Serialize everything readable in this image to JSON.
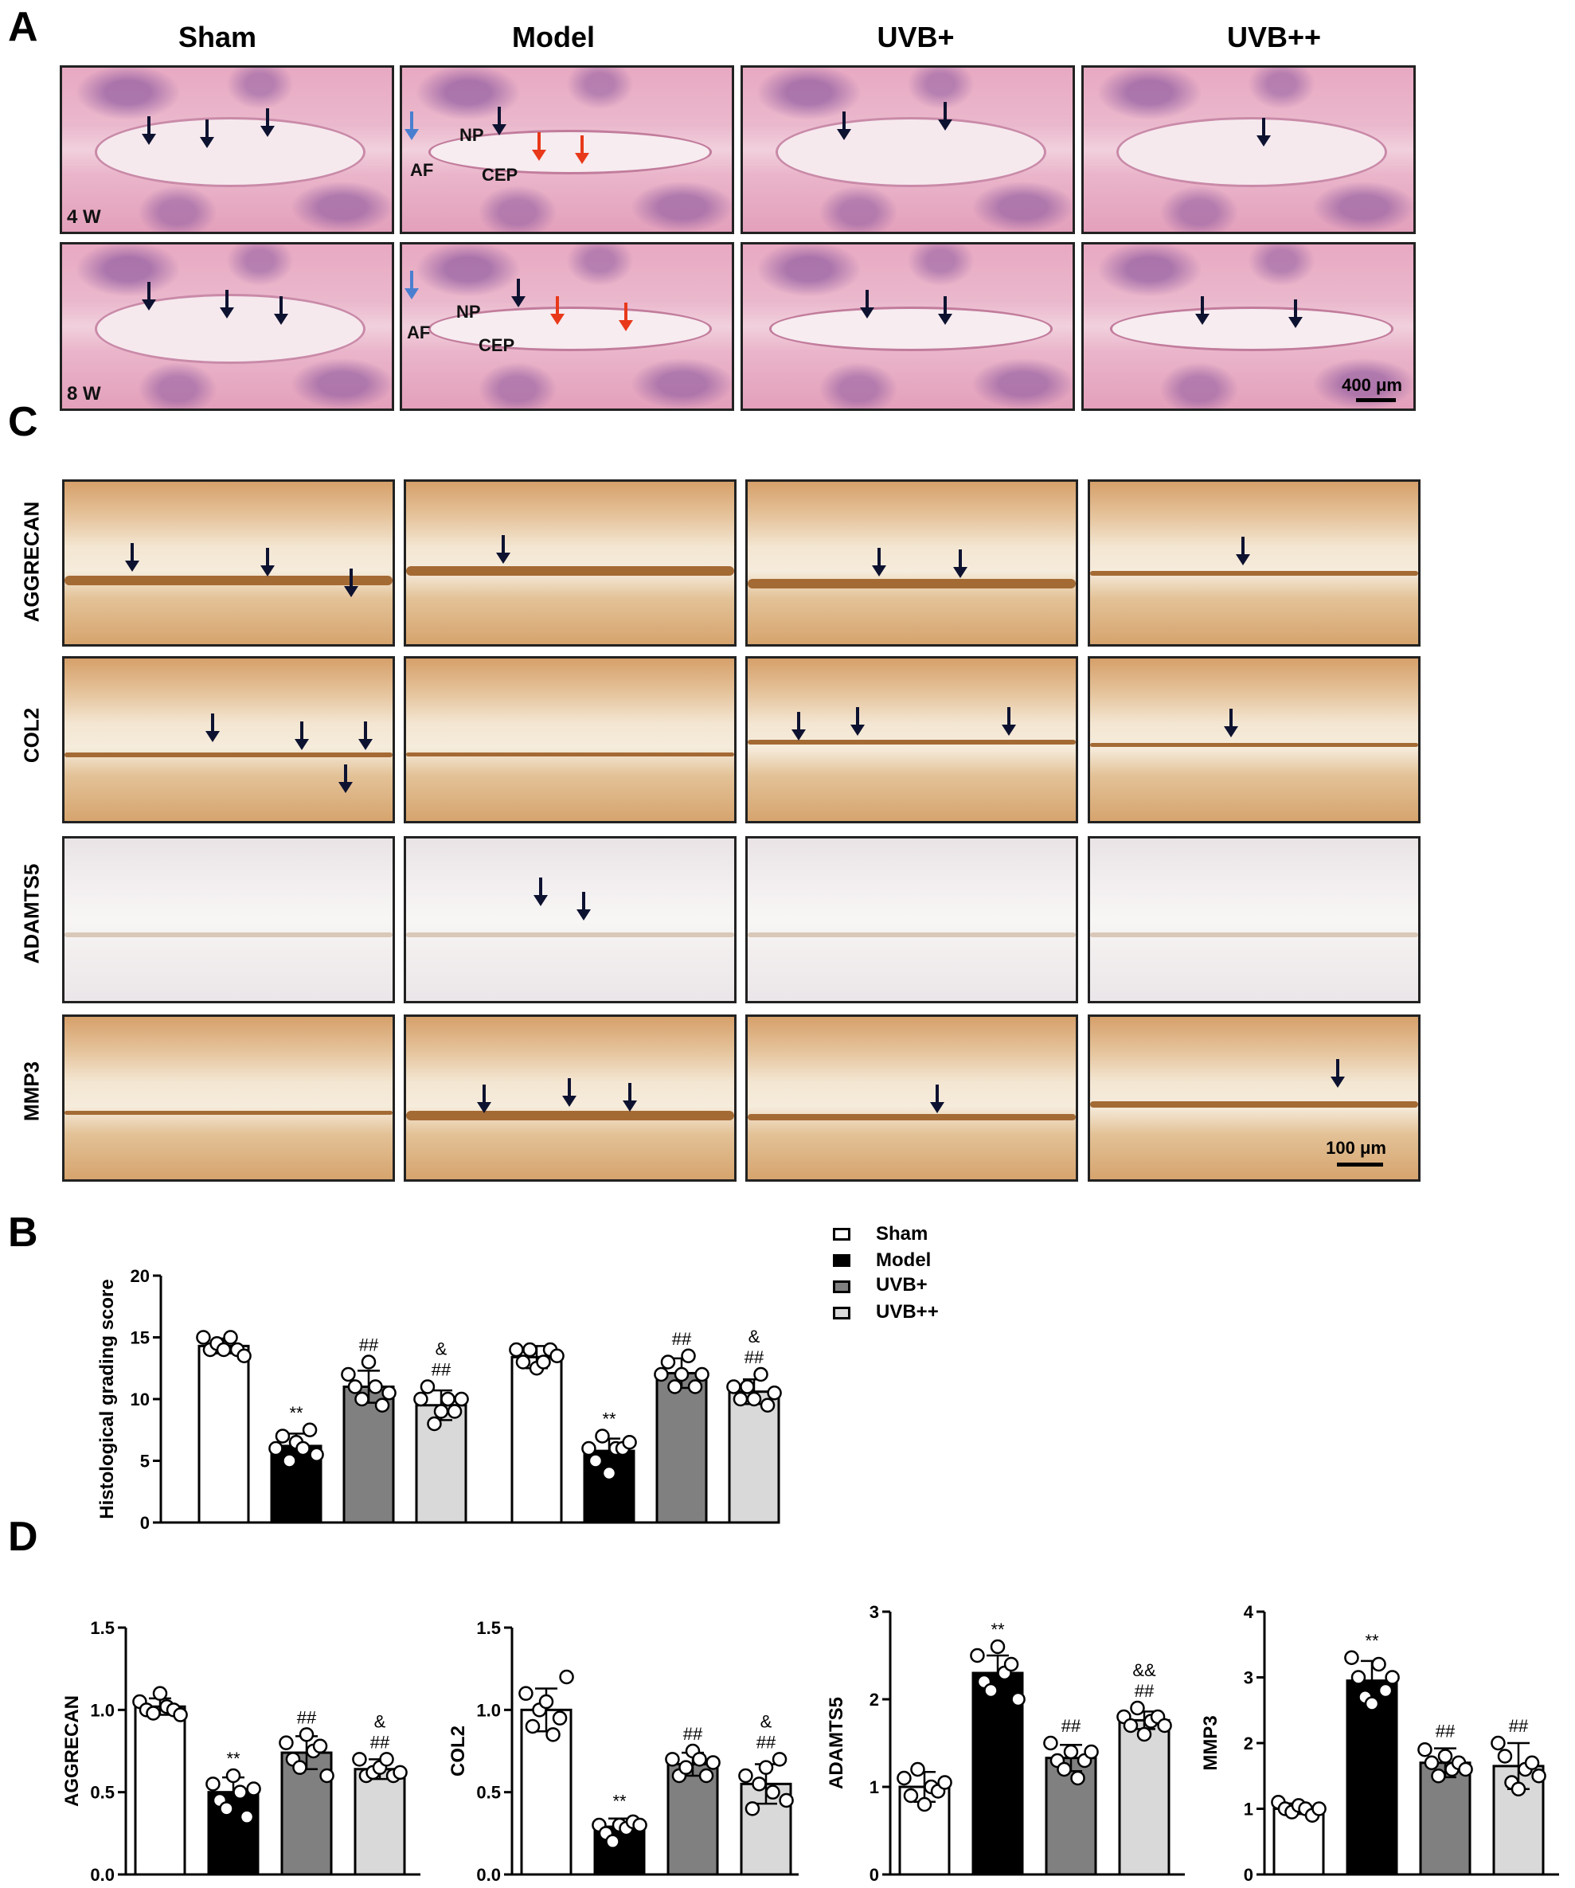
{
  "panel_letters": {
    "A": "A",
    "B": "B",
    "C": "C",
    "D": "D"
  },
  "groups": [
    "Sham",
    "Model",
    "UVB+",
    "UVB++"
  ],
  "panelA": {
    "weeks": [
      "4 W",
      "8 W"
    ],
    "labels": {
      "np": "NP",
      "af": "AF",
      "cep": "CEP"
    },
    "scale": "400 μm"
  },
  "panelC": {
    "rows": [
      "AGGRECAN",
      "COL2",
      "ADAMTS5",
      "MMP3"
    ],
    "scale": "100 μm"
  },
  "colors": {
    "sham": "#ffffff",
    "model": "#000000",
    "uvb_plus": "#808080",
    "uvb_plusplus": "#d9d9d9",
    "arrow_dark": "#0d1230",
    "arrow_red": "#e8391a",
    "arrow_blue": "#4a7fd0"
  },
  "chart_data": [
    {
      "id": "B",
      "type": "bar",
      "ylabel": "Histological grading score",
      "ylim": [
        0,
        20
      ],
      "yticks": [
        "0",
        "5",
        "10",
        "15",
        "20"
      ],
      "legend": [
        "Sham",
        "Model",
        "UVB+",
        "UVB++"
      ],
      "groups": [
        {
          "values": [
            14.3,
            6.2,
            11.0,
            9.5
          ],
          "sd": [
            0.6,
            1.0,
            1.3,
            1.2
          ],
          "points": [
            [
              15,
              14,
              14.5,
              14,
              15,
              14,
              13.5
            ],
            [
              6,
              7,
              5,
              6.5,
              6,
              7.5,
              5.5
            ],
            [
              12,
              11,
              10,
              13,
              11,
              9.5,
              10.5
            ],
            [
              10,
              11,
              8,
              9,
              10,
              9,
              10
            ]
          ],
          "annotations": [
            "",
            "**",
            "##",
            "&\n##"
          ]
        },
        {
          "values": [
            13.4,
            5.8,
            12.1,
            10.6
          ],
          "sd": [
            0.9,
            1.0,
            1.2,
            1.0
          ],
          "points": [
            [
              14,
              13,
              14,
              12.5,
              13,
              14,
              13.5
            ],
            [
              6,
              5,
              7,
              4,
              6,
              6,
              6.5
            ],
            [
              12,
              13,
              11,
              12,
              13.5,
              11,
              12
            ],
            [
              11,
              10,
              11,
              10,
              12,
              9.5,
              10.5
            ]
          ],
          "annotations": [
            "",
            "**",
            "##",
            "&\n##"
          ]
        }
      ]
    },
    {
      "id": "D1",
      "type": "bar",
      "ylabel": "AGGRECAN",
      "categories": [
        "Sham",
        "Model",
        "UVB+",
        "UVB++"
      ],
      "values": [
        1.02,
        0.5,
        0.74,
        0.64
      ],
      "sd": [
        0.05,
        0.09,
        0.1,
        0.06
      ],
      "points": [
        [
          1.05,
          1.0,
          0.98,
          1.1,
          1.02,
          1.0,
          0.97
        ],
        [
          0.55,
          0.45,
          0.4,
          0.6,
          0.5,
          0.35,
          0.52
        ],
        [
          0.8,
          0.7,
          0.65,
          0.85,
          0.75,
          0.78,
          0.6
        ],
        [
          0.7,
          0.6,
          0.62,
          0.65,
          0.7,
          0.6,
          0.62
        ]
      ],
      "ylim": [
        0,
        1.5
      ],
      "yticks": [
        "0.0",
        "0.5",
        "1.0",
        "1.5"
      ],
      "annotations": [
        "",
        "**",
        "##",
        "&\n##"
      ]
    },
    {
      "id": "D2",
      "type": "bar",
      "ylabel": "COL2",
      "categories": [
        "Sham",
        "Model",
        "UVB+",
        "UVB++"
      ],
      "values": [
        1.0,
        0.29,
        0.67,
        0.55
      ],
      "sd": [
        0.13,
        0.05,
        0.07,
        0.12
      ],
      "points": [
        [
          1.1,
          0.9,
          1.0,
          1.05,
          0.85,
          0.95,
          1.2
        ],
        [
          0.3,
          0.25,
          0.2,
          0.3,
          0.28,
          0.32,
          0.3
        ],
        [
          0.7,
          0.6,
          0.65,
          0.75,
          0.7,
          0.6,
          0.68
        ],
        [
          0.6,
          0.4,
          0.55,
          0.65,
          0.5,
          0.7,
          0.45
        ]
      ],
      "ylim": [
        0,
        1.5
      ],
      "yticks": [
        "0.0",
        "0.5",
        "1.0",
        "1.5"
      ],
      "annotations": [
        "",
        "**",
        "##",
        "&\n##"
      ]
    },
    {
      "id": "D3",
      "type": "bar",
      "ylabel": "ADAMTS5",
      "categories": [
        "Sham",
        "Model",
        "UVB+",
        "UVB++"
      ],
      "values": [
        1.0,
        2.3,
        1.33,
        1.76
      ],
      "sd": [
        0.17,
        0.2,
        0.15,
        0.1
      ],
      "points": [
        [
          1.1,
          0.9,
          1.2,
          0.8,
          1.0,
          0.95,
          1.05
        ],
        [
          2.5,
          2.2,
          2.1,
          2.6,
          2.3,
          2.4,
          2.0
        ],
        [
          1.5,
          1.3,
          1.2,
          1.4,
          1.1,
          1.3,
          1.4
        ],
        [
          1.8,
          1.7,
          1.9,
          1.6,
          1.75,
          1.8,
          1.7
        ]
      ],
      "ylim": [
        0,
        3
      ],
      "yticks": [
        "0",
        "1",
        "2",
        "3"
      ],
      "annotations": [
        "",
        "**",
        "##",
        "&&\n##"
      ]
    },
    {
      "id": "D4",
      "type": "bar",
      "ylabel": "MMP3",
      "categories": [
        "Sham",
        "Model",
        "UVB+",
        "UVB++"
      ],
      "values": [
        1.0,
        2.95,
        1.7,
        1.65
      ],
      "sd": [
        0.08,
        0.3,
        0.22,
        0.35
      ],
      "points": [
        [
          1.1,
          1.0,
          0.95,
          1.05,
          1.0,
          0.9,
          1.0
        ],
        [
          3.3,
          3.0,
          2.7,
          2.6,
          3.2,
          2.8,
          3.0
        ],
        [
          1.9,
          1.7,
          1.5,
          1.8,
          1.6,
          1.7,
          1.6
        ],
        [
          2.0,
          1.8,
          1.4,
          1.3,
          1.6,
          1.7,
          1.5
        ]
      ],
      "ylim": [
        0,
        4
      ],
      "yticks": [
        "0",
        "1",
        "2",
        "3",
        "4"
      ],
      "annotations": [
        "",
        "**",
        "##",
        "##"
      ]
    }
  ]
}
